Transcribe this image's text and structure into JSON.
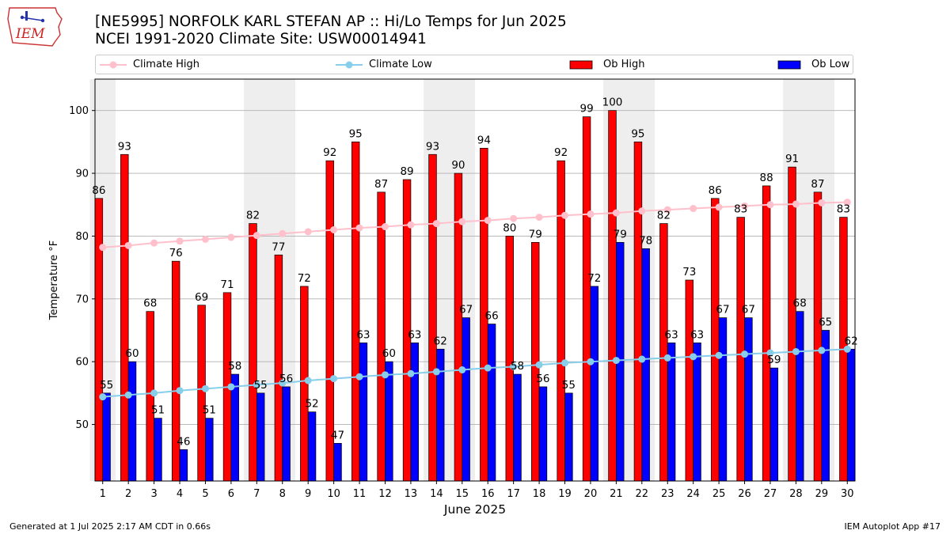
{
  "title_line1": "[NE5995] NORFOLK KARL STEFAN AP :: Hi/Lo Temps for Jun 2025",
  "title_line2": "NCEI 1991-2020 Climate Site: USW00014941",
  "logo_text": "IEM",
  "footer_left": "Generated at 1 Jul 2025 2:17 AM CDT in 0.66s",
  "footer_right": "IEM Autoplot App #17",
  "colors": {
    "ob_high": "#ff0000",
    "ob_low": "#0000ff",
    "climate_high": "#ffc0cb",
    "climate_low": "#87ceeb",
    "weekend_shade": "#eeeeee",
    "grid": "#b0b0b0"
  },
  "chart_data": {
    "type": "bar",
    "xlabel": "June 2025",
    "ylabel": "Temperature °F",
    "ylim": [
      41,
      105
    ],
    "yticks": [
      50,
      60,
      70,
      80,
      90,
      100
    ],
    "grid": "horizontal",
    "legend_position": "top",
    "categories": [
      1,
      2,
      3,
      4,
      5,
      6,
      7,
      8,
      9,
      10,
      11,
      12,
      13,
      14,
      15,
      16,
      17,
      18,
      19,
      20,
      21,
      22,
      23,
      24,
      25,
      26,
      27,
      28,
      29,
      30
    ],
    "shaded_weekend_days": [
      1,
      7,
      8,
      14,
      15,
      21,
      22,
      28,
      29
    ],
    "series": [
      {
        "name": "Climate High",
        "kind": "line",
        "values": [
          78.2,
          78.5,
          78.9,
          79.2,
          79.5,
          79.8,
          80.1,
          80.4,
          80.7,
          81.0,
          81.3,
          81.5,
          81.8,
          82.0,
          82.3,
          82.5,
          82.8,
          83.0,
          83.3,
          83.5,
          83.7,
          84.0,
          84.2,
          84.4,
          84.6,
          84.8,
          85.0,
          85.1,
          85.3,
          85.4
        ]
      },
      {
        "name": "Climate Low",
        "kind": "line",
        "values": [
          54.4,
          54.7,
          55.0,
          55.4,
          55.7,
          56.0,
          56.3,
          56.6,
          57.0,
          57.3,
          57.6,
          57.9,
          58.1,
          58.4,
          58.7,
          59.0,
          59.2,
          59.5,
          59.8,
          60.0,
          60.2,
          60.4,
          60.6,
          60.8,
          61.0,
          61.2,
          61.4,
          61.6,
          61.8,
          62.0
        ]
      },
      {
        "name": "Ob High",
        "kind": "bar",
        "values": [
          86,
          93,
          68,
          76,
          69,
          71,
          82,
          77,
          72,
          92,
          95,
          87,
          89,
          93,
          90,
          94,
          80,
          79,
          92,
          99,
          100,
          95,
          82,
          73,
          86,
          83,
          88,
          91,
          87,
          83
        ]
      },
      {
        "name": "Ob Low",
        "kind": "bar",
        "values": [
          55,
          60,
          51,
          46,
          51,
          58,
          55,
          56,
          52,
          47,
          63,
          60,
          63,
          62,
          67,
          66,
          58,
          56,
          55,
          72,
          79,
          78,
          63,
          63,
          67,
          67,
          59,
          68,
          65,
          62
        ]
      }
    ]
  }
}
